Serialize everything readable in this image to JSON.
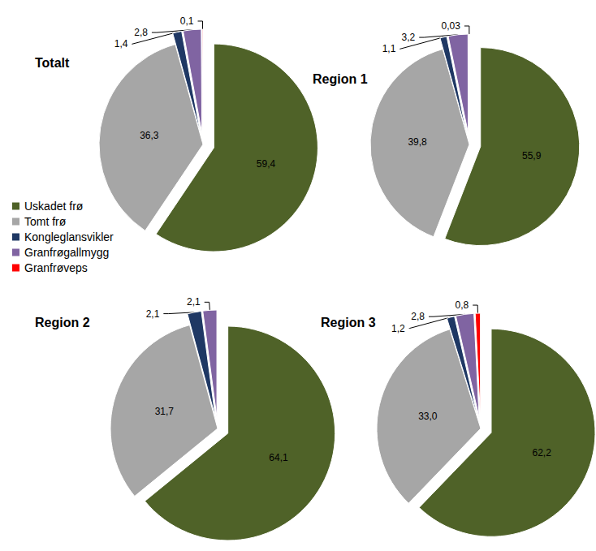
{
  "chart_data": [
    {
      "type": "pie",
      "title": "Totalt",
      "categories": [
        "Uskadet frø",
        "Tomt frø",
        "Kongleglansvikler",
        "Granfrøgallmygg",
        "Granfrøveps"
      ],
      "values": [
        59.4,
        36.3,
        1.4,
        2.8,
        0.1
      ],
      "value_labels": [
        "59,4",
        "36,3",
        "1,4",
        "2,8",
        "0,1"
      ],
      "colors": [
        "#4f6228",
        "#a6a6a6",
        "#1f3864",
        "#8064a2",
        "#ff0000"
      ],
      "data_labels": true,
      "legend": "left"
    },
    {
      "type": "pie",
      "title": "Region 1",
      "categories": [
        "Uskadet frø",
        "Tomt frø",
        "Kongleglansvikler",
        "Granfrøgallmygg",
        "Granfrøveps"
      ],
      "values": [
        55.9,
        39.8,
        1.1,
        3.2,
        0.03
      ],
      "value_labels": [
        "55,9",
        "39,8",
        "1,1",
        "3,2",
        "0,03"
      ],
      "colors": [
        "#4f6228",
        "#a6a6a6",
        "#1f3864",
        "#8064a2",
        "#ff0000"
      ],
      "data_labels": true
    },
    {
      "type": "pie",
      "title": "Region 2",
      "categories": [
        "Uskadet frø",
        "Tomt frø",
        "Kongleglansvikler",
        "Granfrøgallmygg",
        "Granfrøveps"
      ],
      "values": [
        64.1,
        31.7,
        2.1,
        2.1,
        null
      ],
      "value_labels": [
        "64,1",
        "31,7",
        "2,1",
        "2,1",
        null
      ],
      "colors": [
        "#4f6228",
        "#a6a6a6",
        "#1f3864",
        "#8064a2",
        "#ff0000"
      ],
      "data_labels": true
    },
    {
      "type": "pie",
      "title": "Region 3",
      "categories": [
        "Uskadet frø",
        "Tomt frø",
        "Kongleglansvikler",
        "Granfrøgallmygg",
        "Granfrøveps"
      ],
      "values": [
        62.2,
        33.0,
        1.2,
        2.8,
        0.8
      ],
      "value_labels": [
        "62,2",
        "33,0",
        "1,2",
        "2,8",
        "0,8"
      ],
      "colors": [
        "#4f6228",
        "#a6a6a6",
        "#1f3864",
        "#8064a2",
        "#ff0000"
      ],
      "data_labels": true
    }
  ]
}
